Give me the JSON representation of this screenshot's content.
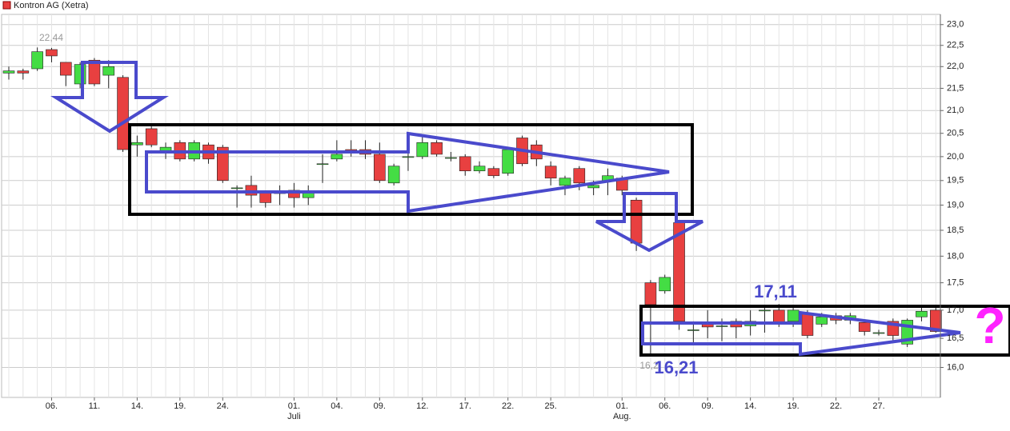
{
  "chart_data": {
    "type": "candlestick",
    "legend": "Kontron AG (Xetra)",
    "up_color": "#44dd44",
    "down_color": "#e84040",
    "log_scale": true,
    "grid": true,
    "categories": [
      null,
      null,
      null,
      "06.",
      null,
      null,
      "11.",
      null,
      null,
      "14.",
      null,
      null,
      "19.",
      null,
      null,
      "24.",
      null,
      null,
      null,
      null,
      "01.",
      null,
      null,
      "04.",
      null,
      null,
      "09.",
      null,
      null,
      "12.",
      null,
      null,
      "17.",
      null,
      null,
      "22.",
      null,
      null,
      "25.",
      null,
      null,
      null,
      null,
      "01.",
      null,
      null,
      "06.",
      null,
      null,
      "09.",
      null,
      null,
      "14.",
      null,
      null,
      "19.",
      null,
      null,
      "22.",
      null,
      null,
      "27.",
      null,
      null,
      null,
      null
    ],
    "month_labels": [
      "Juli",
      "Aug."
    ],
    "open": [
      21.85,
      21.9,
      21.95,
      22.4,
      22.1,
      21.6,
      22.15,
      21.8,
      21.75,
      20.25,
      20.6,
      20.1,
      20.3,
      19.95,
      20.25,
      20.2,
      19.35,
      19.4,
      19.25,
      19.25,
      19.3,
      19.15,
      19.85,
      19.95,
      20.15,
      20.15,
      20.05,
      19.45,
      20.0,
      20.0,
      20.3,
      19.98,
      20.0,
      19.7,
      19.75,
      19.65,
      20.4,
      20.25,
      19.8,
      19.4,
      19.75,
      19.35,
      19.5,
      19.55,
      19.1,
      17.5,
      17.35,
      18.65,
      16.65,
      16.75,
      16.72,
      16.8,
      16.72,
      17.0,
      17.0,
      16.8,
      16.95,
      16.75,
      16.9,
      16.82,
      16.78,
      16.6,
      16.8,
      16.4,
      16.88,
      17.0
    ],
    "high": [
      22.0,
      21.95,
      22.45,
      22.44,
      22.1,
      22.1,
      22.2,
      22.15,
      21.8,
      20.45,
      20.65,
      20.3,
      20.35,
      20.35,
      20.3,
      20.25,
      19.4,
      19.6,
      19.3,
      19.4,
      19.45,
      19.4,
      20.05,
      20.35,
      20.35,
      20.35,
      20.3,
      19.85,
      20.1,
      20.45,
      20.35,
      20.1,
      20.05,
      19.9,
      19.8,
      20.2,
      20.45,
      20.35,
      19.9,
      19.6,
      19.8,
      19.5,
      19.75,
      19.6,
      19.15,
      17.55,
      17.65,
      18.7,
      16.8,
      17.0,
      16.85,
      16.85,
      17.0,
      17.05,
      17.11,
      17.05,
      17.0,
      16.95,
      16.95,
      16.95,
      16.8,
      16.65,
      16.85,
      16.85,
      17.05,
      17.05
    ],
    "low": [
      21.7,
      21.7,
      21.9,
      22.1,
      21.55,
      21.5,
      21.55,
      21.5,
      20.1,
      20.0,
      20.2,
      19.95,
      19.9,
      19.9,
      19.85,
      19.45,
      18.95,
      18.95,
      18.95,
      19.0,
      18.95,
      19.0,
      19.45,
      19.9,
      20.0,
      19.95,
      19.45,
      19.4,
      19.7,
      19.95,
      20.0,
      19.9,
      19.6,
      19.65,
      19.55,
      19.6,
      19.8,
      19.8,
      19.4,
      19.2,
      19.3,
      19.2,
      19.2,
      19.2,
      18.1,
      16.21,
      17.3,
      16.65,
      16.4,
      16.5,
      16.45,
      16.5,
      16.55,
      16.6,
      16.7,
      16.7,
      16.5,
      16.7,
      16.75,
      16.75,
      16.55,
      16.55,
      16.45,
      16.35,
      16.8,
      16.6
    ],
    "close": [
      21.9,
      21.85,
      22.35,
      22.25,
      21.8,
      22.05,
      21.6,
      22.0,
      20.15,
      20.3,
      20.25,
      20.2,
      19.95,
      20.3,
      19.95,
      19.5,
      19.35,
      19.2,
      19.05,
      19.25,
      19.15,
      19.25,
      19.85,
      20.05,
      20.1,
      20.05,
      19.5,
      19.8,
      20.0,
      20.3,
      20.05,
      19.98,
      19.7,
      19.8,
      19.6,
      20.15,
      19.85,
      19.95,
      19.55,
      19.55,
      19.45,
      19.4,
      19.6,
      19.3,
      18.25,
      17.1,
      17.6,
      16.8,
      16.65,
      16.7,
      16.72,
      16.7,
      16.8,
      17.0,
      16.78,
      17.0,
      16.55,
      16.88,
      16.82,
      16.9,
      16.62,
      16.6,
      16.55,
      16.82,
      16.98,
      16.62
    ],
    "ylim": [
      15.5,
      23.25
    ],
    "yticks": [
      {
        "value": 16,
        "label": "16,0"
      },
      {
        "value": 16.5,
        "label": "16,5"
      },
      {
        "value": 17,
        "label": "17,0"
      },
      {
        "value": 17.5,
        "label": "17,5"
      },
      {
        "value": 18,
        "label": "18,0"
      },
      {
        "value": 18.5,
        "label": "18,5"
      },
      {
        "value": 19,
        "label": "19,0"
      },
      {
        "value": 19.5,
        "label": "19,5"
      },
      {
        "value": 20,
        "label": "20,0"
      },
      {
        "value": 20.5,
        "label": "20,5"
      },
      {
        "value": 21,
        "label": "21,0"
      },
      {
        "value": 21.5,
        "label": "21,5"
      },
      {
        "value": 22,
        "label": "22,0"
      },
      {
        "value": 22.5,
        "label": "22,5"
      },
      {
        "value": 23,
        "label": "23,0"
      }
    ],
    "annotations": [
      "22,44",
      "16,2",
      "17,11",
      "16,21",
      "?"
    ]
  }
}
